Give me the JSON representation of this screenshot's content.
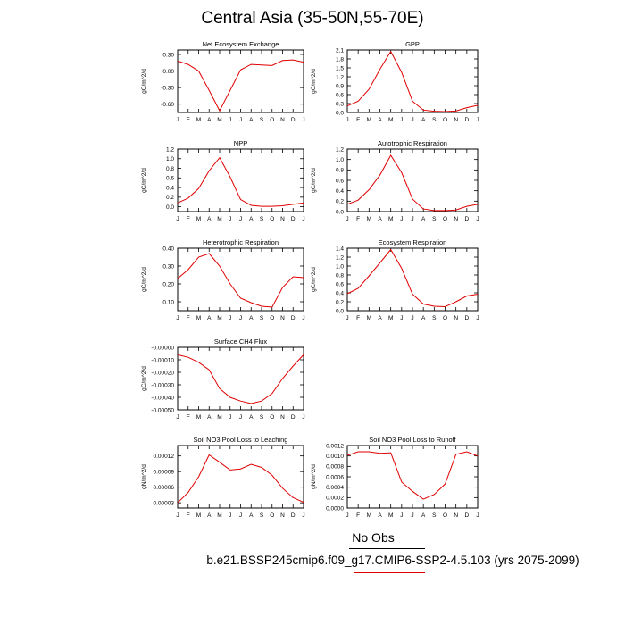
{
  "page": {
    "title": "Central Asia (35-50N,55-70E)",
    "legend": {
      "obs_label": "No Obs",
      "case_label": "b.e21.BSSP245cmip6.f09_g17.CMIP6-SSP2-4.5.103 (yrs 2075-2099)",
      "case_color": "#e00000",
      "obs_color": "#000000"
    }
  },
  "chart_data": [
    {
      "type": "line",
      "title": "Net Ecosystem Exchange",
      "ylabel": "gC/m^2/d",
      "categories": [
        "J",
        "F",
        "M",
        "A",
        "M",
        "J",
        "J",
        "A",
        "S",
        "O",
        "N",
        "D",
        "J"
      ],
      "ylim": [
        -0.75,
        0.38
      ],
      "yticks": [
        "0.30",
        "0.00",
        "-0.30",
        "-0.60"
      ],
      "ytick_values": [
        0.3,
        0.0,
        -0.3,
        -0.6
      ],
      "series": [
        {
          "color": "#e00000",
          "values": [
            0.18,
            0.12,
            0.0,
            -0.35,
            -0.72,
            -0.35,
            0.02,
            0.12,
            0.11,
            0.1,
            0.19,
            0.2,
            0.16
          ]
        }
      ]
    },
    {
      "type": "line",
      "title": "GPP",
      "ylabel": "gC/m^2/d",
      "categories": [
        "J",
        "F",
        "M",
        "A",
        "M",
        "J",
        "J",
        "A",
        "S",
        "O",
        "N",
        "D",
        "J"
      ],
      "ylim": [
        0,
        2.1
      ],
      "yticks": [
        "0.0",
        "0.3",
        "0.6",
        "0.9",
        "1.2",
        "1.5",
        "1.8",
        "2.1"
      ],
      "ytick_values": [
        0.0,
        0.3,
        0.6,
        0.9,
        1.2,
        1.5,
        1.8,
        2.1
      ],
      "series": [
        {
          "color": "#e00000",
          "values": [
            0.22,
            0.38,
            0.78,
            1.45,
            2.05,
            1.35,
            0.38,
            0.08,
            0.04,
            0.03,
            0.05,
            0.16,
            0.24
          ]
        }
      ]
    },
    {
      "type": "line",
      "title": "NPP",
      "ylabel": "gC/m^2/d",
      "categories": [
        "J",
        "F",
        "M",
        "A",
        "M",
        "J",
        "J",
        "A",
        "S",
        "O",
        "N",
        "D",
        "J"
      ],
      "ylim": [
        -0.1,
        1.2
      ],
      "yticks": [
        "0.0",
        "0.2",
        "0.4",
        "0.6",
        "0.8",
        "1.0",
        "1.2"
      ],
      "ytick_values": [
        0.0,
        0.2,
        0.4,
        0.6,
        0.8,
        1.0,
        1.2
      ],
      "series": [
        {
          "color": "#e00000",
          "values": [
            0.08,
            0.18,
            0.38,
            0.75,
            1.02,
            0.62,
            0.15,
            0.03,
            0.01,
            0.01,
            0.02,
            0.05,
            0.08
          ]
        }
      ]
    },
    {
      "type": "line",
      "title": "Autotrophic Respiration",
      "ylabel": "gC/m^2/d",
      "categories": [
        "J",
        "F",
        "M",
        "A",
        "M",
        "J",
        "J",
        "A",
        "S",
        "O",
        "N",
        "D",
        "J"
      ],
      "ylim": [
        0,
        1.2
      ],
      "yticks": [
        "0.0",
        "0.2",
        "0.4",
        "0.6",
        "0.8",
        "1.0",
        "1.2"
      ],
      "ytick_values": [
        0.0,
        0.2,
        0.4,
        0.6,
        0.8,
        1.0,
        1.2
      ],
      "series": [
        {
          "color": "#e00000",
          "values": [
            0.14,
            0.22,
            0.42,
            0.7,
            1.08,
            0.75,
            0.24,
            0.05,
            0.02,
            0.02,
            0.03,
            0.1,
            0.14
          ]
        }
      ]
    },
    {
      "type": "line",
      "title": "Heterotrophic Respiration",
      "ylabel": "gC/m^2/d",
      "categories": [
        "J",
        "F",
        "M",
        "A",
        "M",
        "J",
        "J",
        "A",
        "S",
        "O",
        "N",
        "D",
        "J"
      ],
      "ylim": [
        0.05,
        0.4
      ],
      "yticks": [
        "0.10",
        "0.20",
        "0.30",
        "0.40"
      ],
      "ytick_values": [
        0.1,
        0.2,
        0.3,
        0.4
      ],
      "series": [
        {
          "color": "#e00000",
          "values": [
            0.23,
            0.28,
            0.35,
            0.37,
            0.3,
            0.2,
            0.12,
            0.095,
            0.075,
            0.07,
            0.18,
            0.24,
            0.235
          ]
        }
      ]
    },
    {
      "type": "line",
      "title": "Ecosystem Respiration",
      "ylabel": "gC/m^2/d",
      "categories": [
        "J",
        "F",
        "M",
        "A",
        "M",
        "J",
        "J",
        "A",
        "S",
        "O",
        "N",
        "D",
        "J"
      ],
      "ylim": [
        0,
        1.4
      ],
      "yticks": [
        "0.0",
        "0.2",
        "0.4",
        "0.6",
        "0.8",
        "1.0",
        "1.2",
        "1.4"
      ],
      "ytick_values": [
        0.0,
        0.2,
        0.4,
        0.6,
        0.8,
        1.0,
        1.2,
        1.4
      ],
      "series": [
        {
          "color": "#e00000",
          "values": [
            0.38,
            0.5,
            0.78,
            1.07,
            1.37,
            0.95,
            0.37,
            0.15,
            0.1,
            0.09,
            0.2,
            0.33,
            0.37
          ]
        }
      ]
    },
    {
      "type": "line",
      "title": "Surface CH4 Flux",
      "ylabel": "gC/m^2/d",
      "categories": [
        "J",
        "F",
        "M",
        "A",
        "M",
        "J",
        "J",
        "A",
        "S",
        "O",
        "N",
        "D",
        "J"
      ],
      "ylim": [
        -0.0005,
        0.0
      ],
      "yticks": [
        "-0.00000",
        "-0.00010",
        "-0.00020",
        "-0.00030",
        "-0.00040",
        "-0.00050"
      ],
      "ytick_values": [
        0.0,
        -0.0001,
        -0.0002,
        -0.0003,
        -0.0004,
        -0.0005
      ],
      "series": [
        {
          "color": "#e00000",
          "values": [
            -6e-05,
            -8e-05,
            -0.00012,
            -0.00018,
            -0.00033,
            -0.0004,
            -0.00043,
            -0.00045,
            -0.00043,
            -0.00037,
            -0.00025,
            -0.00015,
            -6e-05
          ]
        }
      ]
    },
    {
      "type": "line",
      "title": "Soil NO3 Pool Loss to Leaching",
      "ylabel": "gN/m^2/d",
      "categories": [
        "J",
        "F",
        "M",
        "A",
        "M",
        "J",
        "J",
        "A",
        "S",
        "O",
        "N",
        "D",
        "J"
      ],
      "ylim": [
        2e-05,
        0.00014
      ],
      "yticks": [
        "0.00003",
        "0.00006",
        "0.00009",
        "0.00012"
      ],
      "ytick_values": [
        3e-05,
        6e-05,
        9e-05,
        0.00012
      ],
      "series": [
        {
          "color": "#e00000",
          "values": [
            3e-05,
            5e-05,
            8e-05,
            0.000122,
            0.000108,
            9.3e-05,
            9.5e-05,
            0.000104,
            9.8e-05,
            8.3e-05,
            5.8e-05,
            4e-05,
            3.1e-05
          ]
        }
      ]
    },
    {
      "type": "line",
      "title": "Soil NO3 Pool Loss to Runoff",
      "ylabel": "gN/m^2/d",
      "categories": [
        "J",
        "F",
        "M",
        "A",
        "M",
        "J",
        "J",
        "A",
        "S",
        "O",
        "N",
        "D",
        "J"
      ],
      "ylim": [
        0.0,
        0.0012
      ],
      "yticks": [
        "0.0000",
        "0.0002",
        "0.0004",
        "0.0006",
        "0.0008",
        "0.0010",
        "0.0012"
      ],
      "ytick_values": [
        0.0,
        0.0002,
        0.0004,
        0.0006,
        0.0008,
        0.001,
        0.0012
      ],
      "series": [
        {
          "color": "#e00000",
          "values": [
            0.00101,
            0.00108,
            0.00108,
            0.00105,
            0.00106,
            0.0005,
            0.00032,
            0.00017,
            0.00026,
            0.00046,
            0.00103,
            0.00108,
            0.001
          ]
        }
      ]
    }
  ]
}
